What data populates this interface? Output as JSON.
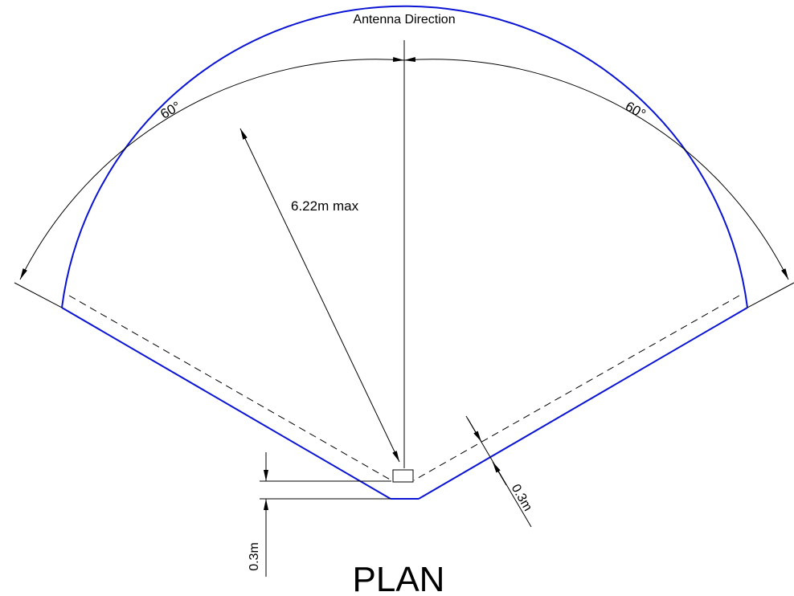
{
  "diagram": {
    "title": "PLAN",
    "direction_label": "Antenna Direction",
    "radius_label": "6.22m max",
    "angle_left_label": "60°",
    "angle_right_label": "60°",
    "offset_side_label": "0.3m",
    "offset_bottom_label": "0.3m"
  },
  "colors": {
    "coverage_outline": "#0a14d2",
    "linework": "#000000",
    "background": "#ffffff"
  }
}
